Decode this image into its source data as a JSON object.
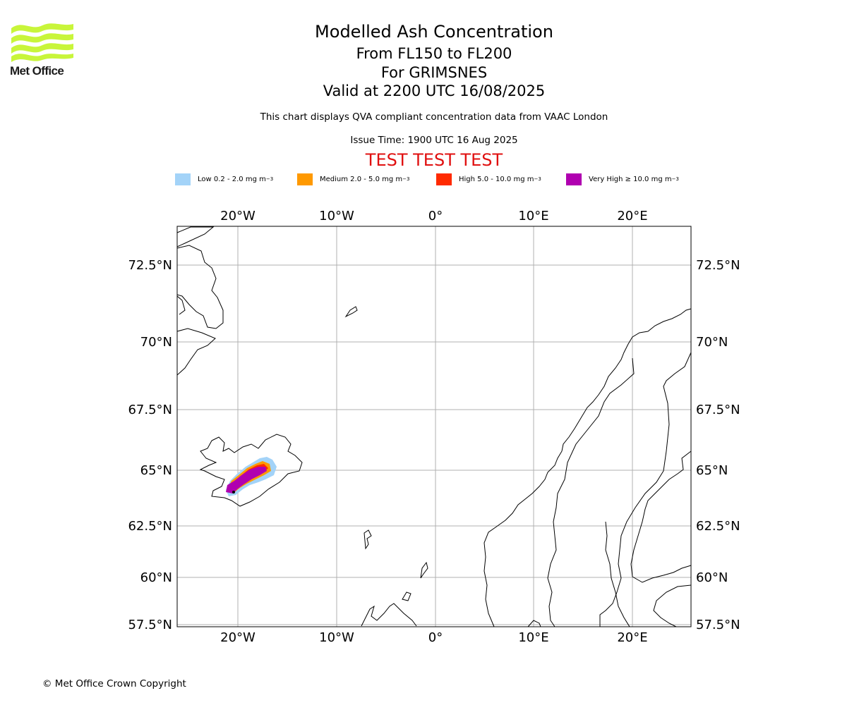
{
  "logo": {
    "text": "Met Office",
    "color": "#c8f53a"
  },
  "title": {
    "main": "Modelled Ash Concentration",
    "levels": "From FL150 to FL200",
    "location": "For GRIMSNES",
    "valid": "Valid at 2200 UTC 16/08/2025"
  },
  "subtitle": "This chart displays QVA compliant concentration data from VAAC London",
  "issue_time": "Issue Time: 1900 UTC 16 Aug 2025",
  "test_banner": "TEST TEST TEST",
  "legend": [
    {
      "label": "Low 0.2 - 2.0 mg m",
      "exp": "−3",
      "color": "#a3d3f8"
    },
    {
      "label": "Medium 2.0 - 5.0 mg m",
      "exp": "−3",
      "color": "#ff9900"
    },
    {
      "label": "High 5.0 - 10.0 mg m",
      "exp": "−3",
      "color": "#ff2a00"
    },
    {
      "label": "Very High ≥ 10.0 mg m",
      "exp": "−3",
      "color": "#b000b0"
    }
  ],
  "map": {
    "lon_ticks": [
      "20°W",
      "10°W",
      "0°",
      "10°E",
      "20°E"
    ],
    "lat_ticks": [
      "72.5°N",
      "70°N",
      "67.5°N",
      "65°N",
      "62.5°N",
      "60°N",
      "57.5°N"
    ]
  },
  "copyright": "© Met Office Crown Copyright"
}
